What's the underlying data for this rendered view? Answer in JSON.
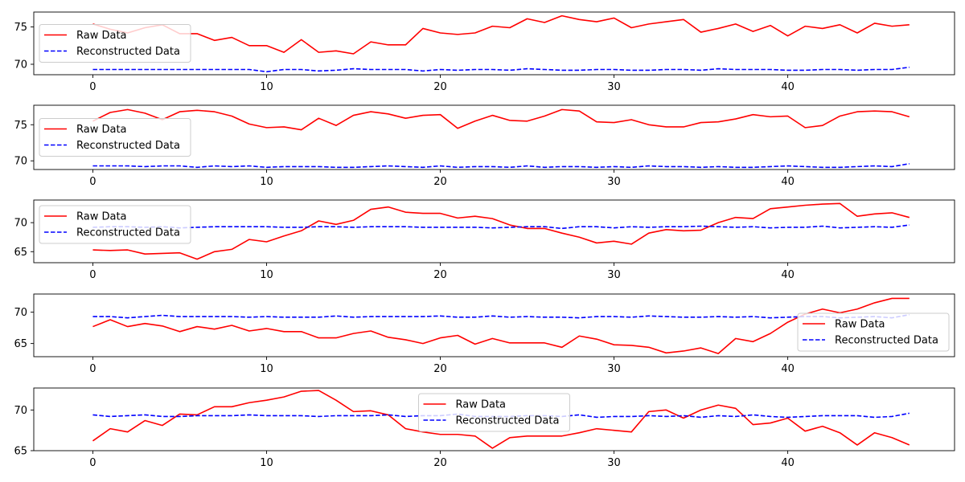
{
  "chart_data": [
    {
      "type": "line",
      "x": [
        0,
        1,
        2,
        3,
        4,
        5,
        6,
        7,
        8,
        9,
        10,
        11,
        12,
        13,
        14,
        15,
        16,
        17,
        18,
        19,
        20,
        21,
        22,
        23,
        24,
        25,
        26,
        27,
        28,
        29,
        30,
        31,
        32,
        33,
        34,
        35,
        36,
        37,
        38,
        39,
        40,
        41,
        42,
        43,
        44,
        45,
        46,
        47
      ],
      "xticks": [
        0,
        10,
        20,
        30,
        40
      ],
      "xlim": [
        -3.4,
        49.6
      ],
      "yticks": [
        70,
        75
      ],
      "ylim": [
        68.6,
        77.0
      ],
      "legend_position": "center-left",
      "series": [
        {
          "name": "Raw Data",
          "color": "#ff0000",
          "style": "solid",
          "values": [
            75.4,
            74.7,
            74.2,
            74.9,
            75.3,
            74.1,
            74.1,
            73.2,
            73.6,
            72.5,
            72.5,
            71.6,
            73.3,
            71.6,
            71.8,
            71.4,
            73.0,
            72.6,
            72.6,
            74.8,
            74.2,
            74.0,
            74.2,
            75.1,
            74.9,
            76.1,
            75.6,
            76.5,
            76.0,
            75.7,
            76.2,
            74.9,
            75.4,
            75.7,
            76.0,
            74.3,
            74.8,
            75.4,
            74.4,
            75.2,
            73.8,
            75.1,
            74.8,
            75.3,
            74.2,
            75.5,
            75.1,
            75.3
          ]
        },
        {
          "name": "Reconstructed Data",
          "color": "#0000ff",
          "style": "dashed",
          "values": [
            69.3,
            69.3,
            69.3,
            69.3,
            69.3,
            69.3,
            69.3,
            69.3,
            69.3,
            69.3,
            69.0,
            69.3,
            69.3,
            69.1,
            69.2,
            69.4,
            69.3,
            69.3,
            69.3,
            69.1,
            69.3,
            69.2,
            69.3,
            69.3,
            69.2,
            69.4,
            69.3,
            69.2,
            69.2,
            69.3,
            69.3,
            69.2,
            69.2,
            69.3,
            69.3,
            69.2,
            69.4,
            69.3,
            69.3,
            69.3,
            69.2,
            69.2,
            69.3,
            69.3,
            69.2,
            69.3,
            69.3,
            69.6
          ]
        }
      ]
    },
    {
      "type": "line",
      "x": [
        0,
        1,
        2,
        3,
        4,
        5,
        6,
        7,
        8,
        9,
        10,
        11,
        12,
        13,
        14,
        15,
        16,
        17,
        18,
        19,
        20,
        21,
        22,
        23,
        24,
        25,
        26,
        27,
        28,
        29,
        30,
        31,
        32,
        33,
        34,
        35,
        36,
        37,
        38,
        39,
        40,
        41,
        42,
        43,
        44,
        45,
        46,
        47
      ],
      "xticks": [
        0,
        10,
        20,
        30,
        40
      ],
      "xlim": [
        -3.4,
        49.6
      ],
      "yticks": [
        70,
        75
      ],
      "ylim": [
        68.8,
        77.7
      ],
      "legend_position": "center-left",
      "series": [
        {
          "name": "Raw Data",
          "color": "#ff0000",
          "style": "solid",
          "values": [
            75.5,
            76.7,
            77.1,
            76.6,
            75.7,
            76.8,
            77.0,
            76.8,
            76.2,
            75.1,
            74.6,
            74.7,
            74.3,
            75.9,
            74.9,
            76.3,
            76.8,
            76.5,
            75.9,
            76.3,
            76.4,
            74.5,
            75.5,
            76.3,
            75.6,
            75.5,
            76.2,
            77.1,
            76.9,
            75.4,
            75.3,
            75.7,
            75.0,
            74.7,
            74.7,
            75.3,
            75.4,
            75.8,
            76.4,
            76.1,
            76.2,
            74.6,
            74.9,
            76.2,
            76.8,
            76.9,
            76.8,
            76.1
          ]
        },
        {
          "name": "Reconstructed Data",
          "color": "#0000ff",
          "style": "dashed",
          "values": [
            69.3,
            69.3,
            69.3,
            69.2,
            69.3,
            69.3,
            69.1,
            69.3,
            69.2,
            69.3,
            69.1,
            69.2,
            69.2,
            69.2,
            69.1,
            69.1,
            69.2,
            69.3,
            69.2,
            69.1,
            69.3,
            69.1,
            69.2,
            69.2,
            69.1,
            69.3,
            69.1,
            69.2,
            69.2,
            69.1,
            69.2,
            69.1,
            69.3,
            69.2,
            69.2,
            69.1,
            69.2,
            69.1,
            69.1,
            69.2,
            69.3,
            69.2,
            69.1,
            69.1,
            69.2,
            69.3,
            69.2,
            69.6
          ]
        }
      ]
    },
    {
      "type": "line",
      "x": [
        0,
        1,
        2,
        3,
        4,
        5,
        6,
        7,
        8,
        9,
        10,
        11,
        12,
        13,
        14,
        15,
        16,
        17,
        18,
        19,
        20,
        21,
        22,
        23,
        24,
        25,
        26,
        27,
        28,
        29,
        30,
        31,
        32,
        33,
        34,
        35,
        36,
        37,
        38,
        39,
        40,
        41,
        42,
        43,
        44,
        45,
        46,
        47
      ],
      "xticks": [
        0,
        10,
        20,
        30,
        40
      ],
      "xlim": [
        -3.4,
        49.6
      ],
      "yticks": [
        65,
        70
      ],
      "ylim": [
        63.1,
        73.9
      ],
      "legend_position": "upper-left",
      "series": [
        {
          "name": "Raw Data",
          "color": "#ff0000",
          "style": "solid",
          "values": [
            65.3,
            65.2,
            65.3,
            64.6,
            64.7,
            64.8,
            63.7,
            65.0,
            65.4,
            67.1,
            66.7,
            67.7,
            68.6,
            70.3,
            69.7,
            70.4,
            72.3,
            72.7,
            71.8,
            71.6,
            71.6,
            70.8,
            71.1,
            70.7,
            69.6,
            69.0,
            69.0,
            68.2,
            67.5,
            66.5,
            66.8,
            66.3,
            68.2,
            68.8,
            68.6,
            68.7,
            70.0,
            70.9,
            70.7,
            72.4,
            72.7,
            73.0,
            73.2,
            73.3,
            71.1,
            71.5,
            71.7,
            70.9
          ]
        },
        {
          "name": "Reconstructed Data",
          "color": "#0000ff",
          "style": "dashed",
          "values": [
            69.2,
            69.3,
            69.3,
            69.2,
            69.3,
            69.1,
            69.2,
            69.3,
            69.3,
            69.3,
            69.3,
            69.2,
            69.2,
            69.3,
            69.3,
            69.2,
            69.3,
            69.3,
            69.3,
            69.2,
            69.2,
            69.2,
            69.2,
            69.1,
            69.2,
            69.3,
            69.3,
            69.0,
            69.3,
            69.3,
            69.1,
            69.3,
            69.2,
            69.3,
            69.3,
            69.4,
            69.3,
            69.2,
            69.3,
            69.1,
            69.2,
            69.2,
            69.4,
            69.1,
            69.2,
            69.3,
            69.2,
            69.6
          ]
        }
      ]
    },
    {
      "type": "line",
      "x": [
        0,
        1,
        2,
        3,
        4,
        5,
        6,
        7,
        8,
        9,
        10,
        11,
        12,
        13,
        14,
        15,
        16,
        17,
        18,
        19,
        20,
        21,
        22,
        23,
        24,
        25,
        26,
        27,
        28,
        29,
        30,
        31,
        32,
        33,
        34,
        35,
        36,
        37,
        38,
        39,
        40,
        41,
        42,
        43,
        44,
        45,
        46,
        47
      ],
      "xticks": [
        0,
        10,
        20,
        30,
        40
      ],
      "xlim": [
        -3.4,
        49.6
      ],
      "yticks": [
        65,
        70
      ],
      "ylim": [
        62.9,
        72.9
      ],
      "legend_position": "lower-right",
      "series": [
        {
          "name": "Raw Data",
          "color": "#ff0000",
          "style": "solid",
          "values": [
            67.7,
            68.8,
            67.7,
            68.2,
            67.8,
            66.9,
            67.7,
            67.3,
            67.9,
            67.0,
            67.4,
            66.9,
            66.9,
            65.9,
            65.9,
            66.6,
            67.0,
            66.0,
            65.6,
            65.0,
            65.9,
            66.3,
            64.9,
            65.8,
            65.1,
            65.1,
            65.1,
            64.4,
            66.2,
            65.7,
            64.8,
            64.7,
            64.4,
            63.5,
            63.8,
            64.3,
            63.4,
            65.8,
            65.3,
            66.6,
            68.4,
            69.7,
            70.5,
            69.9,
            70.5,
            71.5,
            72.2,
            72.2
          ]
        },
        {
          "name": "Reconstructed Data",
          "color": "#0000ff",
          "style": "dashed",
          "values": [
            69.3,
            69.3,
            69.1,
            69.3,
            69.5,
            69.3,
            69.3,
            69.3,
            69.3,
            69.2,
            69.3,
            69.2,
            69.2,
            69.2,
            69.4,
            69.2,
            69.3,
            69.3,
            69.3,
            69.3,
            69.4,
            69.2,
            69.2,
            69.4,
            69.2,
            69.3,
            69.2,
            69.2,
            69.1,
            69.3,
            69.3,
            69.2,
            69.4,
            69.3,
            69.2,
            69.2,
            69.3,
            69.2,
            69.3,
            69.1,
            69.2,
            69.3,
            69.3,
            69.1,
            69.2,
            69.3,
            69.1,
            69.6
          ]
        }
      ]
    },
    {
      "type": "line",
      "x": [
        0,
        1,
        2,
        3,
        4,
        5,
        6,
        7,
        8,
        9,
        10,
        11,
        12,
        13,
        14,
        15,
        16,
        17,
        18,
        19,
        20,
        21,
        22,
        23,
        24,
        25,
        26,
        27,
        28,
        29,
        30,
        31,
        32,
        33,
        34,
        35,
        36,
        37,
        38,
        39,
        40,
        41,
        42,
        43,
        44,
        45,
        46,
        47
      ],
      "xticks": [
        0,
        10,
        20,
        30,
        40
      ],
      "xlim": [
        -3.4,
        49.6
      ],
      "yticks": [
        65,
        70
      ],
      "ylim": [
        65.0,
        72.7
      ],
      "legend_position": "upper-center",
      "series": [
        {
          "name": "Raw Data",
          "color": "#ff0000",
          "style": "solid",
          "values": [
            66.2,
            67.7,
            67.3,
            68.7,
            68.1,
            69.5,
            69.4,
            70.4,
            70.4,
            70.9,
            71.2,
            71.6,
            72.3,
            72.4,
            71.2,
            69.8,
            69.9,
            69.4,
            67.7,
            67.3,
            67.0,
            67.0,
            66.8,
            65.3,
            66.6,
            66.8,
            66.8,
            66.8,
            67.2,
            67.7,
            67.5,
            67.3,
            69.8,
            70.0,
            69.0,
            70.0,
            70.6,
            70.2,
            68.2,
            68.4,
            69.0,
            67.4,
            68.0,
            67.2,
            65.7,
            67.2,
            66.6,
            65.7
          ]
        },
        {
          "name": "Reconstructed Data",
          "color": "#0000ff",
          "style": "dashed",
          "values": [
            69.4,
            69.2,
            69.3,
            69.4,
            69.2,
            69.2,
            69.3,
            69.3,
            69.3,
            69.4,
            69.3,
            69.3,
            69.3,
            69.2,
            69.3,
            69.3,
            69.3,
            69.4,
            69.2,
            69.3,
            69.3,
            69.5,
            69.2,
            69.2,
            69.2,
            69.3,
            69.3,
            69.2,
            69.4,
            69.1,
            69.2,
            69.2,
            69.3,
            69.2,
            69.3,
            69.1,
            69.3,
            69.2,
            69.4,
            69.2,
            69.1,
            69.2,
            69.3,
            69.3,
            69.3,
            69.1,
            69.2,
            69.6
          ]
        }
      ]
    }
  ]
}
